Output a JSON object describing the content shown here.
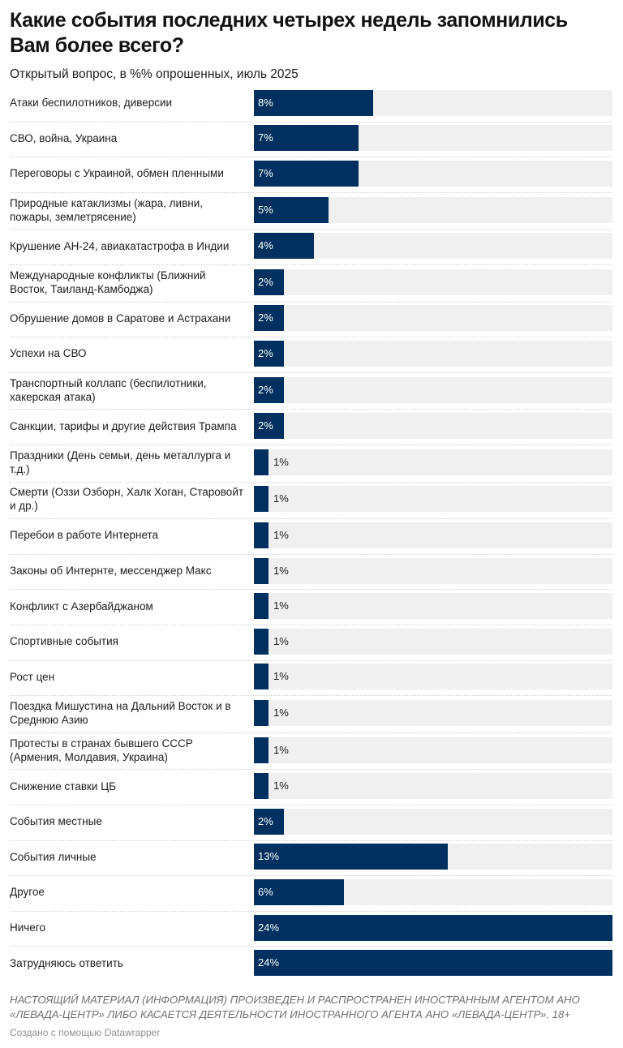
{
  "chart_data": {
    "type": "bar",
    "orientation": "horizontal",
    "title": "Какие события последних четырех недель запомнились Вам более всего?",
    "subtitle": "Открытый вопрос, в %% опрошенных, июль 2025",
    "unit": "%",
    "xlim": [
      0,
      24
    ],
    "colors": {
      "bar": "#00305f",
      "track": "#f0f0f0"
    },
    "categories": [
      "Атаки беспилотников, диверсии",
      "СВО, война, Украина",
      "Переговоры с Украиной, обмен пленными",
      "Природные катаклизмы (жара, ливни, пожары, землетрясение)",
      "Крушение АН-24, авиакатастрофа в Индии",
      "Международные конфликты (Ближний Восток, Таиланд-Камбоджа)",
      "Обрушение домов в Саратове и Астрахани",
      "Успехи на СВО",
      "Транспортный коллапс (беспилотники, хакерская атака)",
      "Санкции, тарифы и другие действия Трампа",
      "Праздники (День семьи, день металлурга и т.д.)",
      "Смерти (Оззи Озборн, Халк Хоган, Старовойт и др.)",
      "Перебои в работе Интернета",
      "Законы об Интернте, мессенджер Макс",
      "Конфликт с Азербайджаном",
      "Спортивные события",
      "Рост цен",
      "Поездка Мишустина на Дальний Восток и в Среднюю Азию",
      "Протесты в странах бывшего СССР (Армения, Молдавия, Украина)",
      "Снижение ставки ЦБ",
      "События местные",
      "События личные",
      "Другое",
      "Ничего",
      "Затрудняюсь ответить"
    ],
    "values": [
      8,
      7,
      7,
      5,
      4,
      2,
      2,
      2,
      2,
      2,
      1,
      1,
      1,
      1,
      1,
      1,
      1,
      1,
      1,
      1,
      2,
      13,
      6,
      24,
      24
    ]
  },
  "notes": "НАСТОЯЩИЙ МАТЕРИАЛ (ИНФОРМАЦИЯ) ПРОИЗВЕДЕН И РАСПРОСТРАНЕН ИНОСТРАННЫМ АГЕНТОМ АНО «ЛЕВАДА-ЦЕНТР» ЛИБО КАСАЕТСЯ ДЕЯТЕЛЬНОСТИ ИНОСТРАННОГО АГЕНТА АНО «ЛЕВАДА-ЦЕНТР». 18+",
  "credit": "Создано с помощью Datawrapper"
}
